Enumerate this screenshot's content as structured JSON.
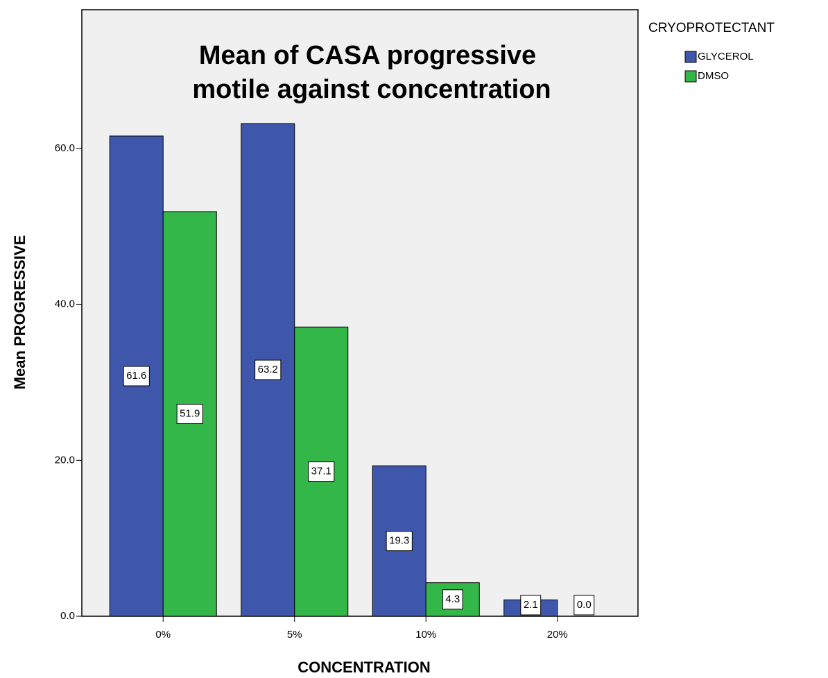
{
  "chart_data": {
    "type": "bar",
    "title": [
      "Mean of CASA progressive",
      "motile against concentration"
    ],
    "x_label": "CONCENTRATION",
    "y_label": "Mean PROGRESSIVE",
    "legend_title": "CRYOPROTECTANT",
    "legend_position": "outside-right",
    "categories": [
      "0%",
      "5%",
      "10%",
      "20%"
    ],
    "series": [
      {
        "name": "GLYCEROL",
        "color": "#3f57ab",
        "values": [
          61.6,
          63.2,
          19.3,
          2.1
        ],
        "value_labels": [
          "61.6",
          "63.2",
          "19.3",
          "2.1"
        ]
      },
      {
        "name": "DMSO",
        "color": "#34b749",
        "values": [
          51.9,
          37.1,
          4.3,
          0
        ],
        "value_labels": [
          "51.9",
          "37.1",
          "4.3",
          "0.0"
        ]
      }
    ],
    "ylim": [
      0,
      77.8
    ],
    "yticks": [
      {
        "value": 0,
        "label": "0.0"
      },
      {
        "value": 20,
        "label": "20.0"
      },
      {
        "value": 40,
        "label": "40.0"
      },
      {
        "value": 60,
        "label": "60.0"
      }
    ],
    "grid": false
  }
}
